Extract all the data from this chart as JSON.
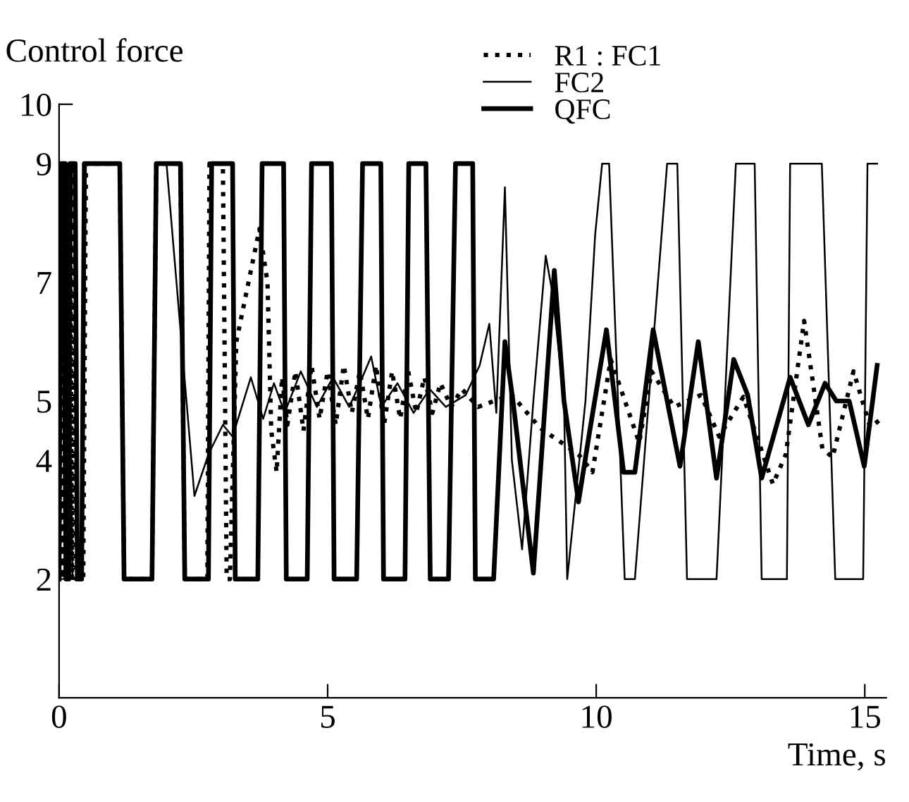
{
  "chart_data": {
    "type": "line",
    "xlabel": "Time, s",
    "ylabel": "Control force",
    "xlim": [
      0,
      15.4
    ],
    "xticks": [
      0,
      5,
      10,
      15
    ],
    "ylim": [
      0,
      10
    ],
    "yticks": [
      2,
      4,
      5,
      7,
      9,
      10
    ],
    "grid": false,
    "legend": "top right",
    "series": [
      {
        "name": "R1 : FC1",
        "color": "#000000",
        "line_style": "dotted",
        "x": [
          0,
          0.05,
          0.08,
          0.12,
          0.16,
          0.2,
          0.24,
          0.28,
          0.32,
          0.45,
          0.5,
          1.13,
          1.21,
          1.73,
          1.81,
          2.26,
          2.34,
          2.76,
          2.8,
          3.05,
          3.12,
          3.18,
          3.3,
          3.73,
          3.88,
          3.95,
          4.05,
          4.15,
          4.25,
          4.4,
          4.55,
          4.7,
          4.85,
          5.0,
          5.15,
          5.3,
          5.45,
          5.6,
          5.75,
          5.9,
          6.05,
          6.2,
          6.35,
          6.5,
          6.65,
          6.8,
          6.95,
          7.1,
          7.3,
          7.5,
          7.8,
          8.1,
          8.43,
          8.95,
          9.67,
          9.93,
          10.27,
          10.8,
          11.03,
          11.45,
          11.95,
          12.29,
          12.74,
          13.29,
          13.53,
          13.87,
          14.21,
          14.4,
          14.79,
          15.1,
          15.31
        ],
        "values": [
          2,
          9,
          2,
          9,
          2,
          9,
          2,
          9,
          2,
          2,
          9,
          9,
          2,
          2,
          9,
          9,
          2,
          2,
          9,
          9,
          2,
          2,
          6,
          7.9,
          7.0,
          4.5,
          3.8,
          5.4,
          4.6,
          5.5,
          4.5,
          5.6,
          4.7,
          5.5,
          4.6,
          5.6,
          4.8,
          5.5,
          4.7,
          5.6,
          4.6,
          5.5,
          4.7,
          5.5,
          4.8,
          5.4,
          4.8,
          5.3,
          4.9,
          5.2,
          4.9,
          5.0,
          5.1,
          4.55,
          4.1,
          3.8,
          5.7,
          4.3,
          5.5,
          4.9,
          5.1,
          4.4,
          5.07,
          3.6,
          4.1,
          6.35,
          4.2,
          4.05,
          5.5,
          4.56,
          4.7
        ]
      },
      {
        "name": "FC2",
        "color": "#000000",
        "line_style": "solid",
        "x": [
          0,
          0.05,
          0.1,
          0.16,
          0.25,
          0.42,
          0.5,
          1.13,
          1.2,
          1.73,
          1.81,
          2.0,
          2.52,
          2.78,
          3.05,
          3.23,
          3.57,
          3.8,
          4.0,
          4.2,
          4.5,
          4.8,
          5.1,
          5.4,
          5.6,
          5.81,
          6.0,
          6.3,
          6.6,
          6.9,
          7.2,
          7.57,
          7.83,
          8.01,
          8.14,
          8.3,
          8.43,
          8.62,
          8.83,
          9.06,
          9.19,
          9.4,
          9.46,
          9.8,
          9.98,
          10.11,
          10.24,
          10.53,
          10.72,
          11.32,
          11.51,
          11.69,
          12.24,
          12.6,
          12.95,
          13.08,
          13.55,
          13.61,
          14.2,
          14.45,
          14.97,
          15.05,
          15.23
        ],
        "values": [
          2,
          9,
          2,
          9,
          2,
          2,
          9,
          9,
          2,
          2,
          9,
          9,
          3.4,
          4.1,
          4.6,
          4.4,
          5.4,
          4.7,
          5.3,
          4.8,
          5.5,
          4.9,
          5.4,
          4.9,
          5.3,
          5.75,
          4.9,
          5.3,
          4.8,
          5.2,
          4.9,
          5.1,
          5.6,
          6.3,
          4.8,
          8.6,
          4.0,
          2.5,
          5.0,
          7.45,
          6.8,
          5.0,
          2.0,
          5.0,
          7.8,
          9,
          9,
          2,
          2,
          9,
          9,
          2,
          2,
          9,
          9,
          2,
          2,
          9,
          9,
          2,
          2,
          9,
          9
        ]
      },
      {
        "name": "QFC",
        "color": "#000000",
        "line_style": "solid",
        "x": [
          0,
          0.03,
          0.11,
          0.13,
          0.18,
          0.21,
          0.3,
          0.34,
          0.42,
          0.47,
          1.13,
          1.21,
          1.73,
          1.81,
          2.26,
          2.34,
          2.78,
          2.84,
          3.23,
          3.28,
          3.7,
          3.78,
          4.18,
          4.23,
          4.62,
          4.7,
          5.07,
          5.12,
          5.54,
          5.65,
          5.99,
          6.04,
          6.44,
          6.51,
          6.83,
          6.91,
          7.25,
          7.38,
          7.7,
          7.75,
          8.09,
          8.3,
          8.45,
          8.83,
          9.22,
          9.4,
          9.67,
          9.88,
          10.19,
          10.51,
          10.72,
          11.06,
          11.56,
          11.9,
          12.24,
          12.56,
          12.82,
          13.08,
          13.61,
          13.95,
          14.26,
          14.47,
          14.71,
          14.99,
          15.23
        ],
        "values": [
          2,
          9,
          9,
          2,
          2,
          9,
          9,
          2,
          2,
          9,
          9,
          2,
          2,
          9,
          9,
          2,
          2,
          9,
          9,
          2,
          2,
          9,
          9,
          2,
          2,
          9,
          9,
          2,
          2,
          9,
          9,
          2,
          2,
          9,
          9,
          2,
          2,
          9,
          9,
          2,
          2,
          6,
          5,
          2.1,
          7.2,
          5,
          3.3,
          4.5,
          6.2,
          3.8,
          3.8,
          6.2,
          3.9,
          6.0,
          3.7,
          5.7,
          5.1,
          3.7,
          5.4,
          4.6,
          5.3,
          5.0,
          5.0,
          3.9,
          5.6
        ]
      }
    ]
  }
}
